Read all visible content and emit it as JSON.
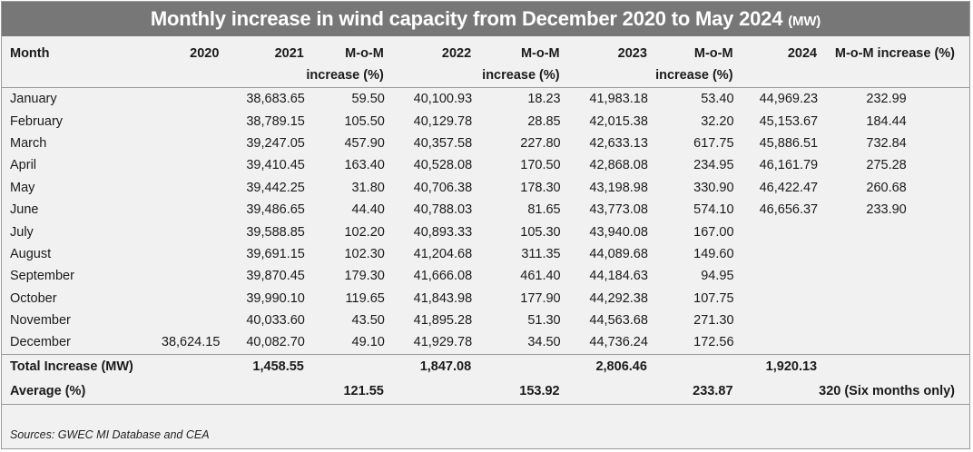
{
  "title": "Monthly increase in wind capacity from December 2020 to May 2024",
  "title_unit": "(MW)",
  "headers": {
    "month": "Month",
    "y2020": "2020",
    "y2021": "2021",
    "mom_a": "M-o-M",
    "mom_b": "increase (%)",
    "y2022": "2022",
    "y2023": "2023",
    "y2024": "2024",
    "mom_full": "M-o-M increase (%)"
  },
  "rows": [
    {
      "month": "January",
      "v2020": "",
      "v2021": "38,683.65",
      "m2021": "59.50",
      "v2022": "40,100.93",
      "m2022": "18.23",
      "v2023": "41,983.18",
      "m2023": "53.40",
      "v2024": "44,969.23",
      "m2024": "232.99"
    },
    {
      "month": "February",
      "v2020": "",
      "v2021": "38,789.15",
      "m2021": "105.50",
      "v2022": "40,129.78",
      "m2022": "28.85",
      "v2023": "42,015.38",
      "m2023": "32.20",
      "v2024": "45,153.67",
      "m2024": "184.44"
    },
    {
      "month": "March",
      "v2020": "",
      "v2021": "39,247.05",
      "m2021": "457.90",
      "v2022": "40,357.58",
      "m2022": "227.80",
      "v2023": "42,633.13",
      "m2023": "617.75",
      "v2024": "45,886.51",
      "m2024": "732.84"
    },
    {
      "month": "April",
      "v2020": "",
      "v2021": "39,410.45",
      "m2021": "163.40",
      "v2022": "40,528.08",
      "m2022": "170.50",
      "v2023": "42,868.08",
      "m2023": "234.95",
      "v2024": "46,161.79",
      "m2024": "275.28"
    },
    {
      "month": "May",
      "v2020": "",
      "v2021": "39,442.25",
      "m2021": "31.80",
      "v2022": "40,706.38",
      "m2022": "178.30",
      "v2023": "43,198.98",
      "m2023": "330.90",
      "v2024": "46,422.47",
      "m2024": "260.68"
    },
    {
      "month": "June",
      "v2020": "",
      "v2021": "39,486.65",
      "m2021": "44.40",
      "v2022": "40,788.03",
      "m2022": "81.65",
      "v2023": "43,773.08",
      "m2023": "574.10",
      "v2024": "46,656.37",
      "m2024": "233.90"
    },
    {
      "month": "July",
      "v2020": "",
      "v2021": "39,588.85",
      "m2021": "102.20",
      "v2022": "40,893.33",
      "m2022": "105.30",
      "v2023": "43,940.08",
      "m2023": "167.00",
      "v2024": "",
      "m2024": ""
    },
    {
      "month": "August",
      "v2020": "",
      "v2021": "39,691.15",
      "m2021": "102.30",
      "v2022": "41,204.68",
      "m2022": "311.35",
      "v2023": "44,089.68",
      "m2023": "149.60",
      "v2024": "",
      "m2024": ""
    },
    {
      "month": "September",
      "v2020": "",
      "v2021": "39,870.45",
      "m2021": "179.30",
      "v2022": "41,666.08",
      "m2022": "461.40",
      "v2023": "44,184.63",
      "m2023": "94.95",
      "v2024": "",
      "m2024": ""
    },
    {
      "month": "October",
      "v2020": "",
      "v2021": "39,990.10",
      "m2021": "119.65",
      "v2022": "41,843.98",
      "m2022": "177.90",
      "v2023": "44,292.38",
      "m2023": "107.75",
      "v2024": "",
      "m2024": ""
    },
    {
      "month": "November",
      "v2020": "",
      "v2021": "40,033.60",
      "m2021": "43.50",
      "v2022": "41,895.28",
      "m2022": "51.30",
      "v2023": "44,563.68",
      "m2023": "271.30",
      "v2024": "",
      "m2024": ""
    },
    {
      "month": "December",
      "v2020": "38,624.15",
      "v2021": "40,082.70",
      "m2021": "49.10",
      "v2022": "41,929.78",
      "m2022": "34.50",
      "v2023": "44,736.24",
      "m2023": "172.56",
      "v2024": "",
      "m2024": ""
    }
  ],
  "total": {
    "label": "Total Increase (MW)",
    "v2021": "1,458.55",
    "v2022": "1,847.08",
    "v2023": "2,806.46",
    "v2024": "1,920.13"
  },
  "average": {
    "label": "Average (%)",
    "m2021": "121.55",
    "m2022": "153.92",
    "m2023": "233.87",
    "m2024": "320 (Six months only)"
  },
  "source": "Sources: GWEC MI Database and CEA"
}
